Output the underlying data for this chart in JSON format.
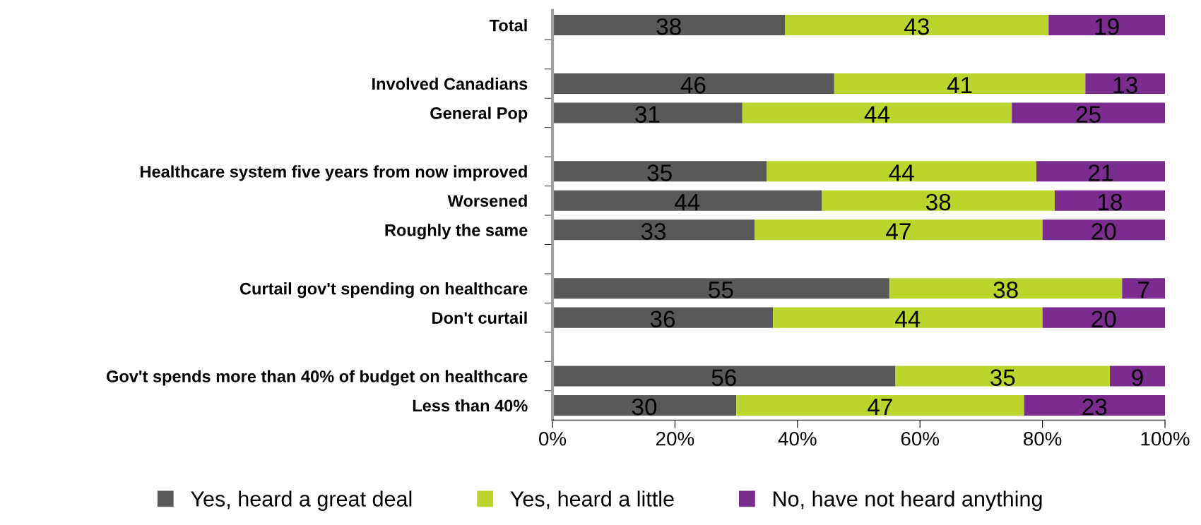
{
  "chart_data": {
    "type": "bar",
    "orientation": "horizontal",
    "stacked": true,
    "data_labels": true,
    "legend": "bottom",
    "grid": false,
    "categories": [
      "Total",
      null,
      "Involved Canadians",
      "General Pop",
      null,
      "Healthcare system five years from now improved",
      "Worsened",
      "Roughly the same",
      null,
      "Curtail gov't spending on healthcare",
      "Don't curtail",
      null,
      "Gov't spends more than 40% of budget on healthcare",
      "Less than 40%"
    ],
    "series": [
      {
        "name": "Yes, heard a great deal",
        "color": "#595959",
        "values": [
          38,
          null,
          46,
          31,
          null,
          35,
          44,
          33,
          null,
          55,
          36,
          null,
          56,
          30
        ]
      },
      {
        "name": "Yes, heard a little",
        "color": "#bcd52e",
        "values": [
          43,
          null,
          41,
          44,
          null,
          44,
          38,
          47,
          null,
          38,
          44,
          null,
          35,
          47
        ]
      },
      {
        "name": "No, have not heard anything",
        "color": "#7b2c8f",
        "values": [
          19,
          null,
          13,
          25,
          null,
          21,
          18,
          20,
          null,
          7,
          20,
          null,
          9,
          23
        ]
      }
    ],
    "xlim": [
      0,
      100
    ],
    "xticks": [
      {
        "value": 0,
        "label": "0%"
      },
      {
        "value": 20,
        "label": "20%"
      },
      {
        "value": 40,
        "label": "40%"
      },
      {
        "value": 60,
        "label": "60%"
      },
      {
        "value": 80,
        "label": "80%"
      },
      {
        "value": 100,
        "label": "100%"
      }
    ]
  }
}
